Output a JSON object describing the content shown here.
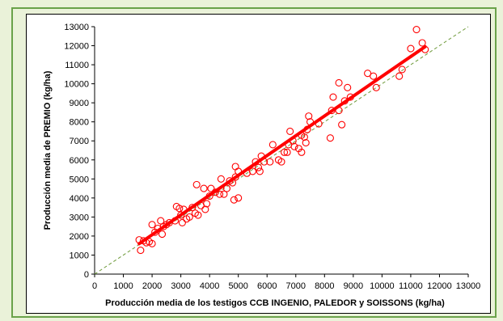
{
  "chart_data": {
    "type": "scatter",
    "xlabel": "Producción media de los testigos CCB INGENIO, PALEDOR y SOISSONS (kg/ha)",
    "ylabel": "Producción media de PREMIO (kg/ha)",
    "xlim": [
      0,
      13000
    ],
    "ylim": [
      0,
      13000
    ],
    "x_ticks": [
      "0",
      "1000",
      "2000",
      "3000",
      "4000",
      "5000",
      "6000",
      "7000",
      "8000",
      "9000",
      "10000",
      "11000",
      "12000",
      "13000"
    ],
    "y_ticks": [
      "0",
      "1000",
      "2000",
      "3000",
      "4000",
      "5000",
      "6000",
      "7000",
      "8000",
      "9000",
      "10000",
      "11000",
      "12000",
      "13000"
    ],
    "grid": false,
    "legend": "none",
    "points": [
      [
        1550,
        1800
      ],
      [
        1600,
        1250
      ],
      [
        1700,
        1750
      ],
      [
        1800,
        1650
      ],
      [
        1900,
        1700
      ],
      [
        2000,
        1600
      ],
      [
        2000,
        2600
      ],
      [
        2100,
        2200
      ],
      [
        2200,
        2400
      ],
      [
        2300,
        2800
      ],
      [
        2350,
        2100
      ],
      [
        2400,
        2500
      ],
      [
        2500,
        2600
      ],
      [
        2600,
        2700
      ],
      [
        2800,
        2800
      ],
      [
        2850,
        3550
      ],
      [
        2950,
        3450
      ],
      [
        3000,
        3100
      ],
      [
        3050,
        2700
      ],
      [
        3100,
        3400
      ],
      [
        3200,
        2900
      ],
      [
        3300,
        3000
      ],
      [
        3400,
        3500
      ],
      [
        3500,
        3200
      ],
      [
        3550,
        4700
      ],
      [
        3600,
        3100
      ],
      [
        3700,
        3600
      ],
      [
        3800,
        4500
      ],
      [
        3850,
        3400
      ],
      [
        3900,
        3700
      ],
      [
        4000,
        4100
      ],
      [
        4050,
        4500
      ],
      [
        4200,
        4300
      ],
      [
        4350,
        4200
      ],
      [
        4400,
        5000
      ],
      [
        4500,
        4200
      ],
      [
        4600,
        4500
      ],
      [
        4700,
        4900
      ],
      [
        4800,
        4800
      ],
      [
        4850,
        3900
      ],
      [
        4900,
        5100
      ],
      [
        4900,
        5650
      ],
      [
        5000,
        4000
      ],
      [
        5000,
        5400
      ],
      [
        5300,
        5300
      ],
      [
        5500,
        5400
      ],
      [
        5600,
        5900
      ],
      [
        5700,
        5600
      ],
      [
        5750,
        5400
      ],
      [
        5800,
        6200
      ],
      [
        5900,
        5900
      ],
      [
        6100,
        5900
      ],
      [
        6200,
        6800
      ],
      [
        6400,
        6000
      ],
      [
        6500,
        5900
      ],
      [
        6600,
        6400
      ],
      [
        6700,
        6400
      ],
      [
        6750,
        6800
      ],
      [
        6800,
        7500
      ],
      [
        6900,
        7000
      ],
      [
        6950,
        6700
      ],
      [
        7100,
        6600
      ],
      [
        7200,
        6400
      ],
      [
        7200,
        7300
      ],
      [
        7300,
        7200
      ],
      [
        7350,
        6900
      ],
      [
        7400,
        7600
      ],
      [
        7450,
        8300
      ],
      [
        7500,
        8000
      ],
      [
        7800,
        7900
      ],
      [
        8200,
        7150
      ],
      [
        8250,
        8600
      ],
      [
        8300,
        9300
      ],
      [
        8500,
        8600
      ],
      [
        8500,
        10050
      ],
      [
        8600,
        7850
      ],
      [
        8700,
        9100
      ],
      [
        8800,
        9800
      ],
      [
        8900,
        9300
      ],
      [
        9500,
        10550
      ],
      [
        9700,
        10400
      ],
      [
        9800,
        9800
      ],
      [
        10600,
        10400
      ],
      [
        10700,
        10750
      ],
      [
        11000,
        11850
      ],
      [
        11200,
        12850
      ],
      [
        11400,
        12150
      ],
      [
        11500,
        11800
      ]
    ],
    "trendline": [
      [
        1550,
        1600
      ],
      [
        11500,
        11950
      ]
    ],
    "reference_line": [
      [
        0,
        0
      ],
      [
        13000,
        13000
      ]
    ],
    "colors": {
      "points": "#ff0000",
      "trendline": "#ff0000",
      "reference_line": "#6e9a3a"
    }
  }
}
